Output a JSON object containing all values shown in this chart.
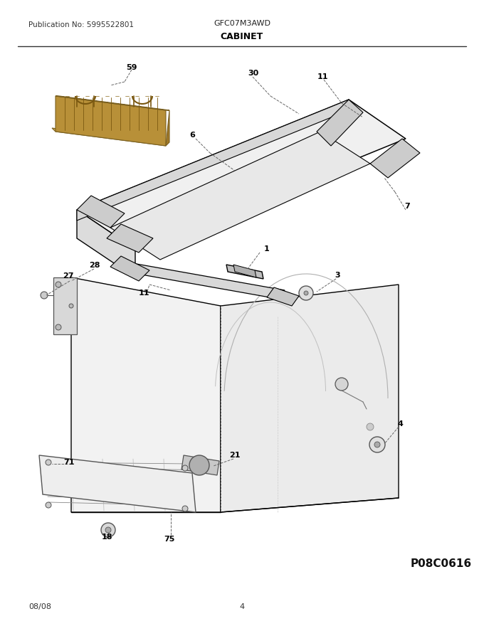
{
  "publication_no": "Publication No: 5995522801",
  "model": "GFC07M3AWD",
  "section": "CABINET",
  "page_code": "P08C0616",
  "date": "08/08",
  "page_num": "4",
  "bg_color": "#ffffff",
  "line_color": "#000000",
  "gray_light": "#e8e8e8",
  "gray_mid": "#d0d0d0",
  "gray_dark": "#aaaaaa",
  "leader_color": "#555555"
}
